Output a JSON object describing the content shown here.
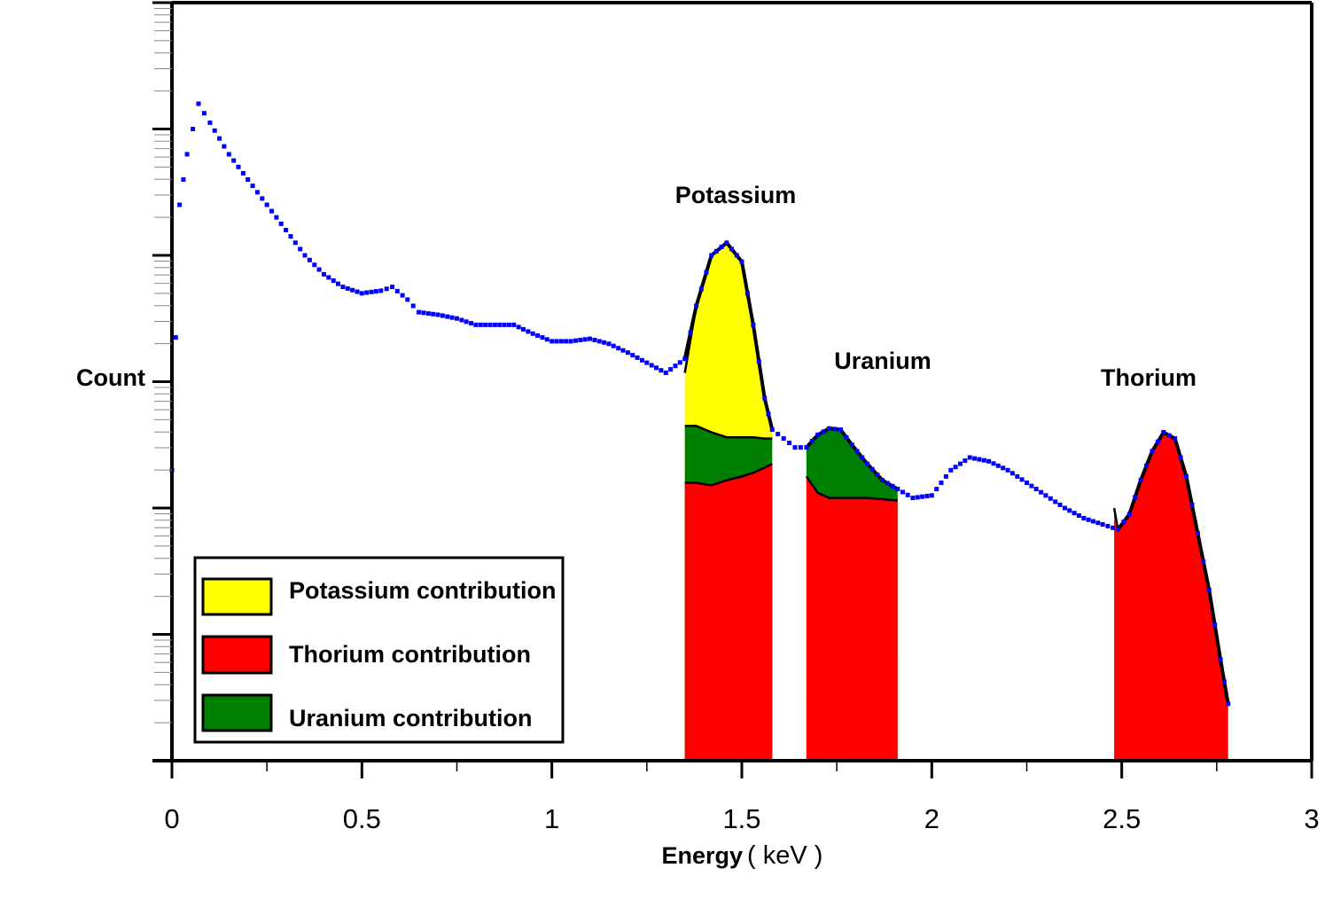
{
  "chart_data": {
    "type": "area",
    "xlabel": "Energy",
    "xunit": "( keV )",
    "ylabel": "Count",
    "xlim": [
      0,
      3
    ],
    "x_ticks": [
      "0",
      "0.5",
      "1",
      "1.5",
      "2",
      "2.5",
      "3"
    ],
    "y_scale": "log",
    "y_tick_labels_shown": false,
    "grid": false,
    "legend_position": "bottom-left",
    "annotations": [
      "Potassium",
      "Uranium",
      "Thorium"
    ],
    "colors": {
      "potassium": "#ffff00",
      "thorium": "#ff0000",
      "uranium": "#008000",
      "measured": "#0000ff",
      "fit": "#000000"
    },
    "series": [
      {
        "name": "measured",
        "style": "dotted",
        "x": [
          0,
          0.02,
          0.04,
          0.07,
          0.1,
          0.15,
          0.2,
          0.25,
          0.3,
          0.35,
          0.4,
          0.45,
          0.5,
          0.55,
          0.58,
          0.62,
          0.65,
          0.7,
          0.75,
          0.8,
          0.85,
          0.9,
          0.95,
          1.0,
          1.05,
          1.1,
          1.15,
          1.2,
          1.25,
          1.3,
          1.35,
          1.38,
          1.42,
          1.46,
          1.5,
          1.53,
          1.56,
          1.58,
          1.61,
          1.64,
          1.67,
          1.7,
          1.73,
          1.76,
          1.79,
          1.83,
          1.87,
          1.91,
          1.95,
          2.0,
          2.05,
          2.1,
          2.15,
          2.2,
          2.25,
          2.3,
          2.35,
          2.4,
          2.45,
          2.49,
          2.52,
          2.55,
          2.58,
          2.61,
          2.64,
          2.67,
          2.7,
          2.73,
          2.76,
          2.78
        ],
        "values": [
          2.3,
          4.4,
          4.8,
          5.2,
          5.05,
          4.8,
          4.6,
          4.4,
          4.2,
          4.0,
          3.85,
          3.75,
          3.7,
          3.72,
          3.75,
          3.65,
          3.55,
          3.53,
          3.5,
          3.45,
          3.45,
          3.45,
          3.38,
          3.32,
          3.32,
          3.34,
          3.3,
          3.23,
          3.15,
          3.07,
          3.18,
          3.6,
          4.0,
          4.1,
          3.95,
          3.45,
          2.87,
          2.62,
          2.55,
          2.48,
          2.48,
          2.58,
          2.63,
          2.62,
          2.5,
          2.35,
          2.22,
          2.15,
          2.08,
          2.1,
          2.3,
          2.4,
          2.37,
          2.3,
          2.2,
          2.1,
          2.0,
          1.92,
          1.87,
          1.83,
          1.95,
          2.22,
          2.45,
          2.6,
          2.55,
          2.25,
          1.8,
          1.35,
          0.8,
          0.45
        ]
      },
      {
        "name": "Potassium contribution",
        "x": [
          1.35,
          1.38,
          1.42,
          1.46,
          1.5,
          1.53,
          1.56,
          1.58
        ],
        "values": [
          3.07,
          3.6,
          4.0,
          4.1,
          3.95,
          3.45,
          2.87,
          2.62
        ]
      },
      {
        "name": "Uranium contribution",
        "x": [
          1.35,
          1.38,
          1.42,
          1.46,
          1.5,
          1.53,
          1.56,
          1.58,
          1.67,
          1.7,
          1.73,
          1.76,
          1.79,
          1.83,
          1.87,
          1.91
        ],
        "values": [
          2.65,
          2.65,
          2.6,
          2.56,
          2.56,
          2.56,
          2.55,
          2.55,
          2.48,
          2.58,
          2.63,
          2.62,
          2.5,
          2.35,
          2.22,
          2.15
        ]
      },
      {
        "name": "Thorium contribution",
        "x": [
          1.35,
          1.38,
          1.42,
          1.46,
          1.5,
          1.53,
          1.56,
          1.58,
          1.67,
          1.7,
          1.73,
          1.76,
          1.79,
          1.83,
          1.87,
          1.91,
          2.48,
          2.49,
          2.52,
          2.55,
          2.58,
          2.61,
          2.64,
          2.67,
          2.7,
          2.73,
          2.76,
          2.78
        ],
        "values": [
          2.2,
          2.2,
          2.18,
          2.22,
          2.25,
          2.28,
          2.32,
          2.35,
          2.25,
          2.12,
          2.08,
          2.08,
          2.08,
          2.08,
          2.07,
          2.06,
          2.0,
          1.83,
          1.95,
          2.22,
          2.45,
          2.6,
          2.55,
          2.25,
          1.8,
          1.35,
          0.8,
          0.45
        ]
      }
    ],
    "legend": [
      {
        "label": "Potassium contribution",
        "color": "#ffff00"
      },
      {
        "label": "Thorium contribution",
        "color": "#ff0000"
      },
      {
        "label": "Uranium contribution",
        "color": "#008000"
      }
    ]
  }
}
